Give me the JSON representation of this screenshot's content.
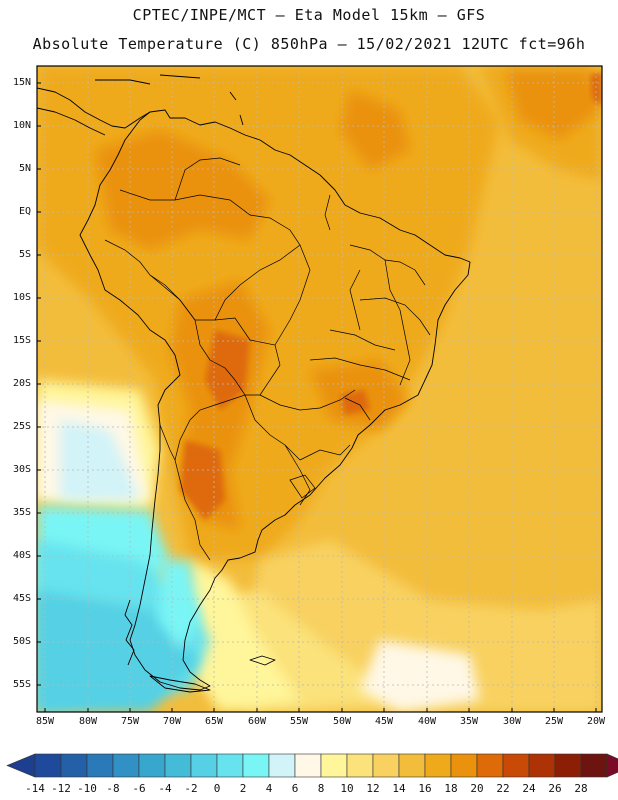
{
  "header": {
    "line1": "CPTEC/INPE/MCT –  Eta Model 15km – GFS",
    "line2": "Absolute Temperature (C) 850hPa – 15/02/2021 12UTC fct=96h"
  },
  "map": {
    "lat_labels": [
      "15N",
      "10N",
      "5N",
      "EQ",
      "5S",
      "10S",
      "15S",
      "20S",
      "25S",
      "30S",
      "35S",
      "40S",
      "45S",
      "50S",
      "55S"
    ],
    "lon_labels": [
      "85W",
      "80W",
      "75W",
      "70W",
      "65W",
      "60W",
      "55W",
      "50W",
      "45W",
      "40W",
      "35W",
      "30W",
      "25W",
      "20W"
    ]
  },
  "colorbar": {
    "labels": [
      "-14",
      "-12",
      "-10",
      "-8",
      "-6",
      "-4",
      "-2",
      "0",
      "2",
      "4",
      "6",
      "8",
      "10",
      "12",
      "14",
      "16",
      "18",
      "20",
      "22",
      "24",
      "26",
      "28"
    ],
    "colors": [
      "#1e3f8f",
      "#1f4a9c",
      "#2460a8",
      "#2a79b8",
      "#3190c4",
      "#38a7ce",
      "#44bcd8",
      "#55d0e4",
      "#66e3ee",
      "#7af5f5",
      "#d2f3f8",
      "#fff8e6",
      "#fff59a",
      "#fbe27a",
      "#f8d160",
      "#f3bd3c",
      "#efaa1b",
      "#ea920d",
      "#de6a08",
      "#c84a06",
      "#ad3205",
      "#8c1e06",
      "#6e1410",
      "#7a0a28"
    ]
  }
}
